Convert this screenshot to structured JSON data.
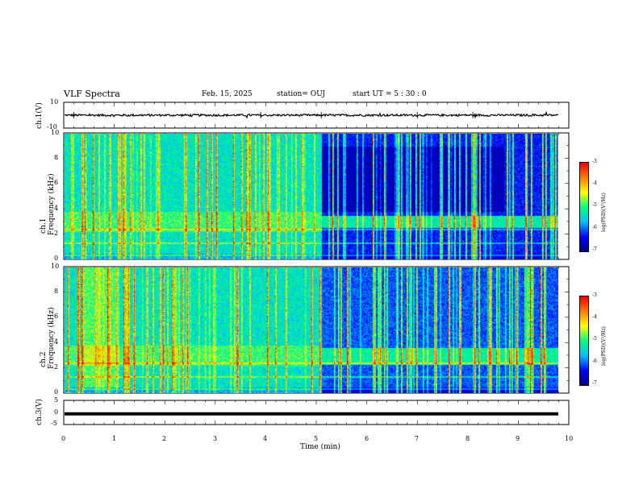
{
  "header": {
    "title": "VLF Spectra",
    "date": "Feb. 15, 2025",
    "station": "station= OUJ",
    "start": "start UT =  5 : 30 : 0"
  },
  "chart_data": [
    {
      "type": "line",
      "ylabel": "ch.1(V)",
      "ylim": [
        -10,
        10
      ],
      "yticks": [
        "10",
        "-10"
      ],
      "xlim": [
        0,
        10
      ],
      "description_level": "noise trace centered near 0 with amplitude about ±1 V, occasional spikes"
    },
    {
      "type": "heatmap",
      "ylabel_line1": "ch.1",
      "ylabel_line2": "Frequency (kHz)",
      "ylim": [
        0,
        10
      ],
      "yticks": [
        "0",
        "2",
        "4",
        "6",
        "8",
        "10"
      ],
      "xlim": [
        0,
        10
      ],
      "colorbar": {
        "label": "log(PSD)(V²/Hz)",
        "range": [
          -7,
          -3
        ],
        "ticks": [
          "-3",
          "-4",
          "-5",
          "-6",
          "-7"
        ]
      }
    },
    {
      "type": "heatmap",
      "ylabel_line1": "ch.2",
      "ylabel_line2": "Frequency (kHz)",
      "ylim": [
        0,
        10
      ],
      "yticks": [
        "0",
        "2",
        "4",
        "6",
        "8",
        "10"
      ],
      "xlim": [
        0,
        10
      ],
      "colorbar": {
        "label": "log(PSD)(V²/Hz)",
        "range": [
          -7,
          -3
        ],
        "ticks": [
          "-3",
          "-4",
          "-5",
          "-6",
          "-7"
        ]
      }
    },
    {
      "type": "line",
      "ylabel": "ch.3(V)",
      "ylim": [
        -5,
        5
      ],
      "yticks": [
        "5",
        "0",
        "-5"
      ],
      "xlim": [
        0,
        10
      ],
      "constant_value": -0.6
    }
  ],
  "xaxis": {
    "label": "Time (min)",
    "ticks": [
      "0",
      "1",
      "2",
      "3",
      "4",
      "5",
      "6",
      "7",
      "8",
      "9",
      "10"
    ]
  },
  "colors": {
    "colormap": [
      "#00007f",
      "#0000ff",
      "#00c0ff",
      "#00ff80",
      "#ffff00",
      "#ff8000",
      "#ff0000",
      "#ffffff"
    ]
  }
}
